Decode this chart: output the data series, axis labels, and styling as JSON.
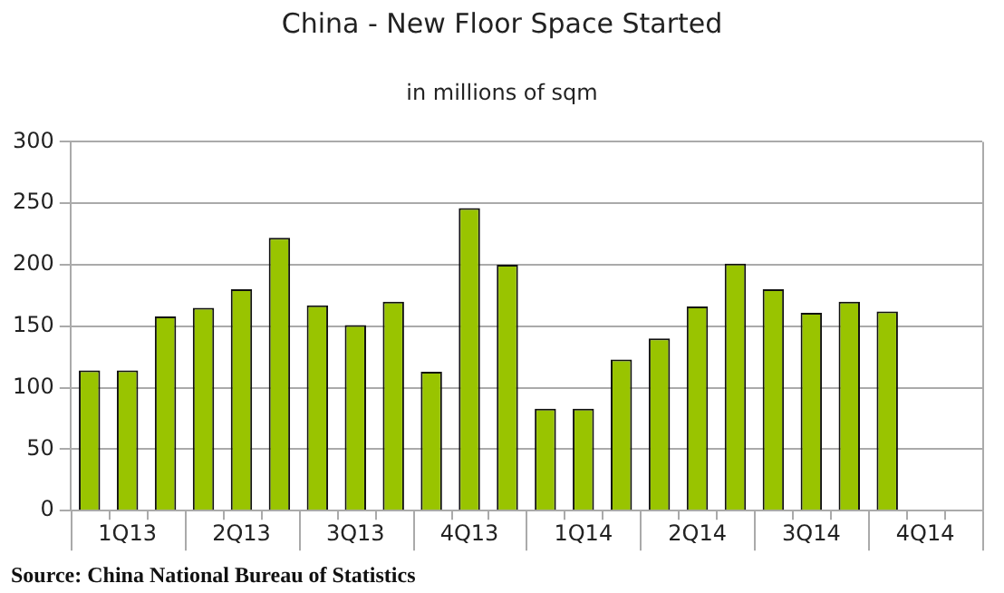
{
  "chart_data": {
    "type": "bar",
    "title": "China - New Floor Space Started",
    "subtitle": "in millions of sqm",
    "categories": [
      null,
      "1Q13",
      null,
      null,
      "2Q13",
      null,
      null,
      "3Q13",
      null,
      null,
      "4Q13",
      null,
      null,
      "1Q14",
      null,
      null,
      "2Q14",
      null,
      null,
      "3Q14",
      null,
      null,
      "4Q14",
      null
    ],
    "values": [
      114,
      114,
      158,
      165,
      180,
      222,
      167,
      151,
      170,
      113,
      246,
      200,
      83,
      83,
      123,
      140,
      166,
      201,
      180,
      161,
      170,
      162,
      null,
      null
    ],
    "color": "#99c400",
    "ylim": [
      0,
      300
    ],
    "yticks": [
      0,
      50,
      100,
      150,
      200,
      250,
      300
    ],
    "grid": "y",
    "legend": false,
    "annotations": [
      "Source: China National Bureau of Statistics"
    ]
  }
}
